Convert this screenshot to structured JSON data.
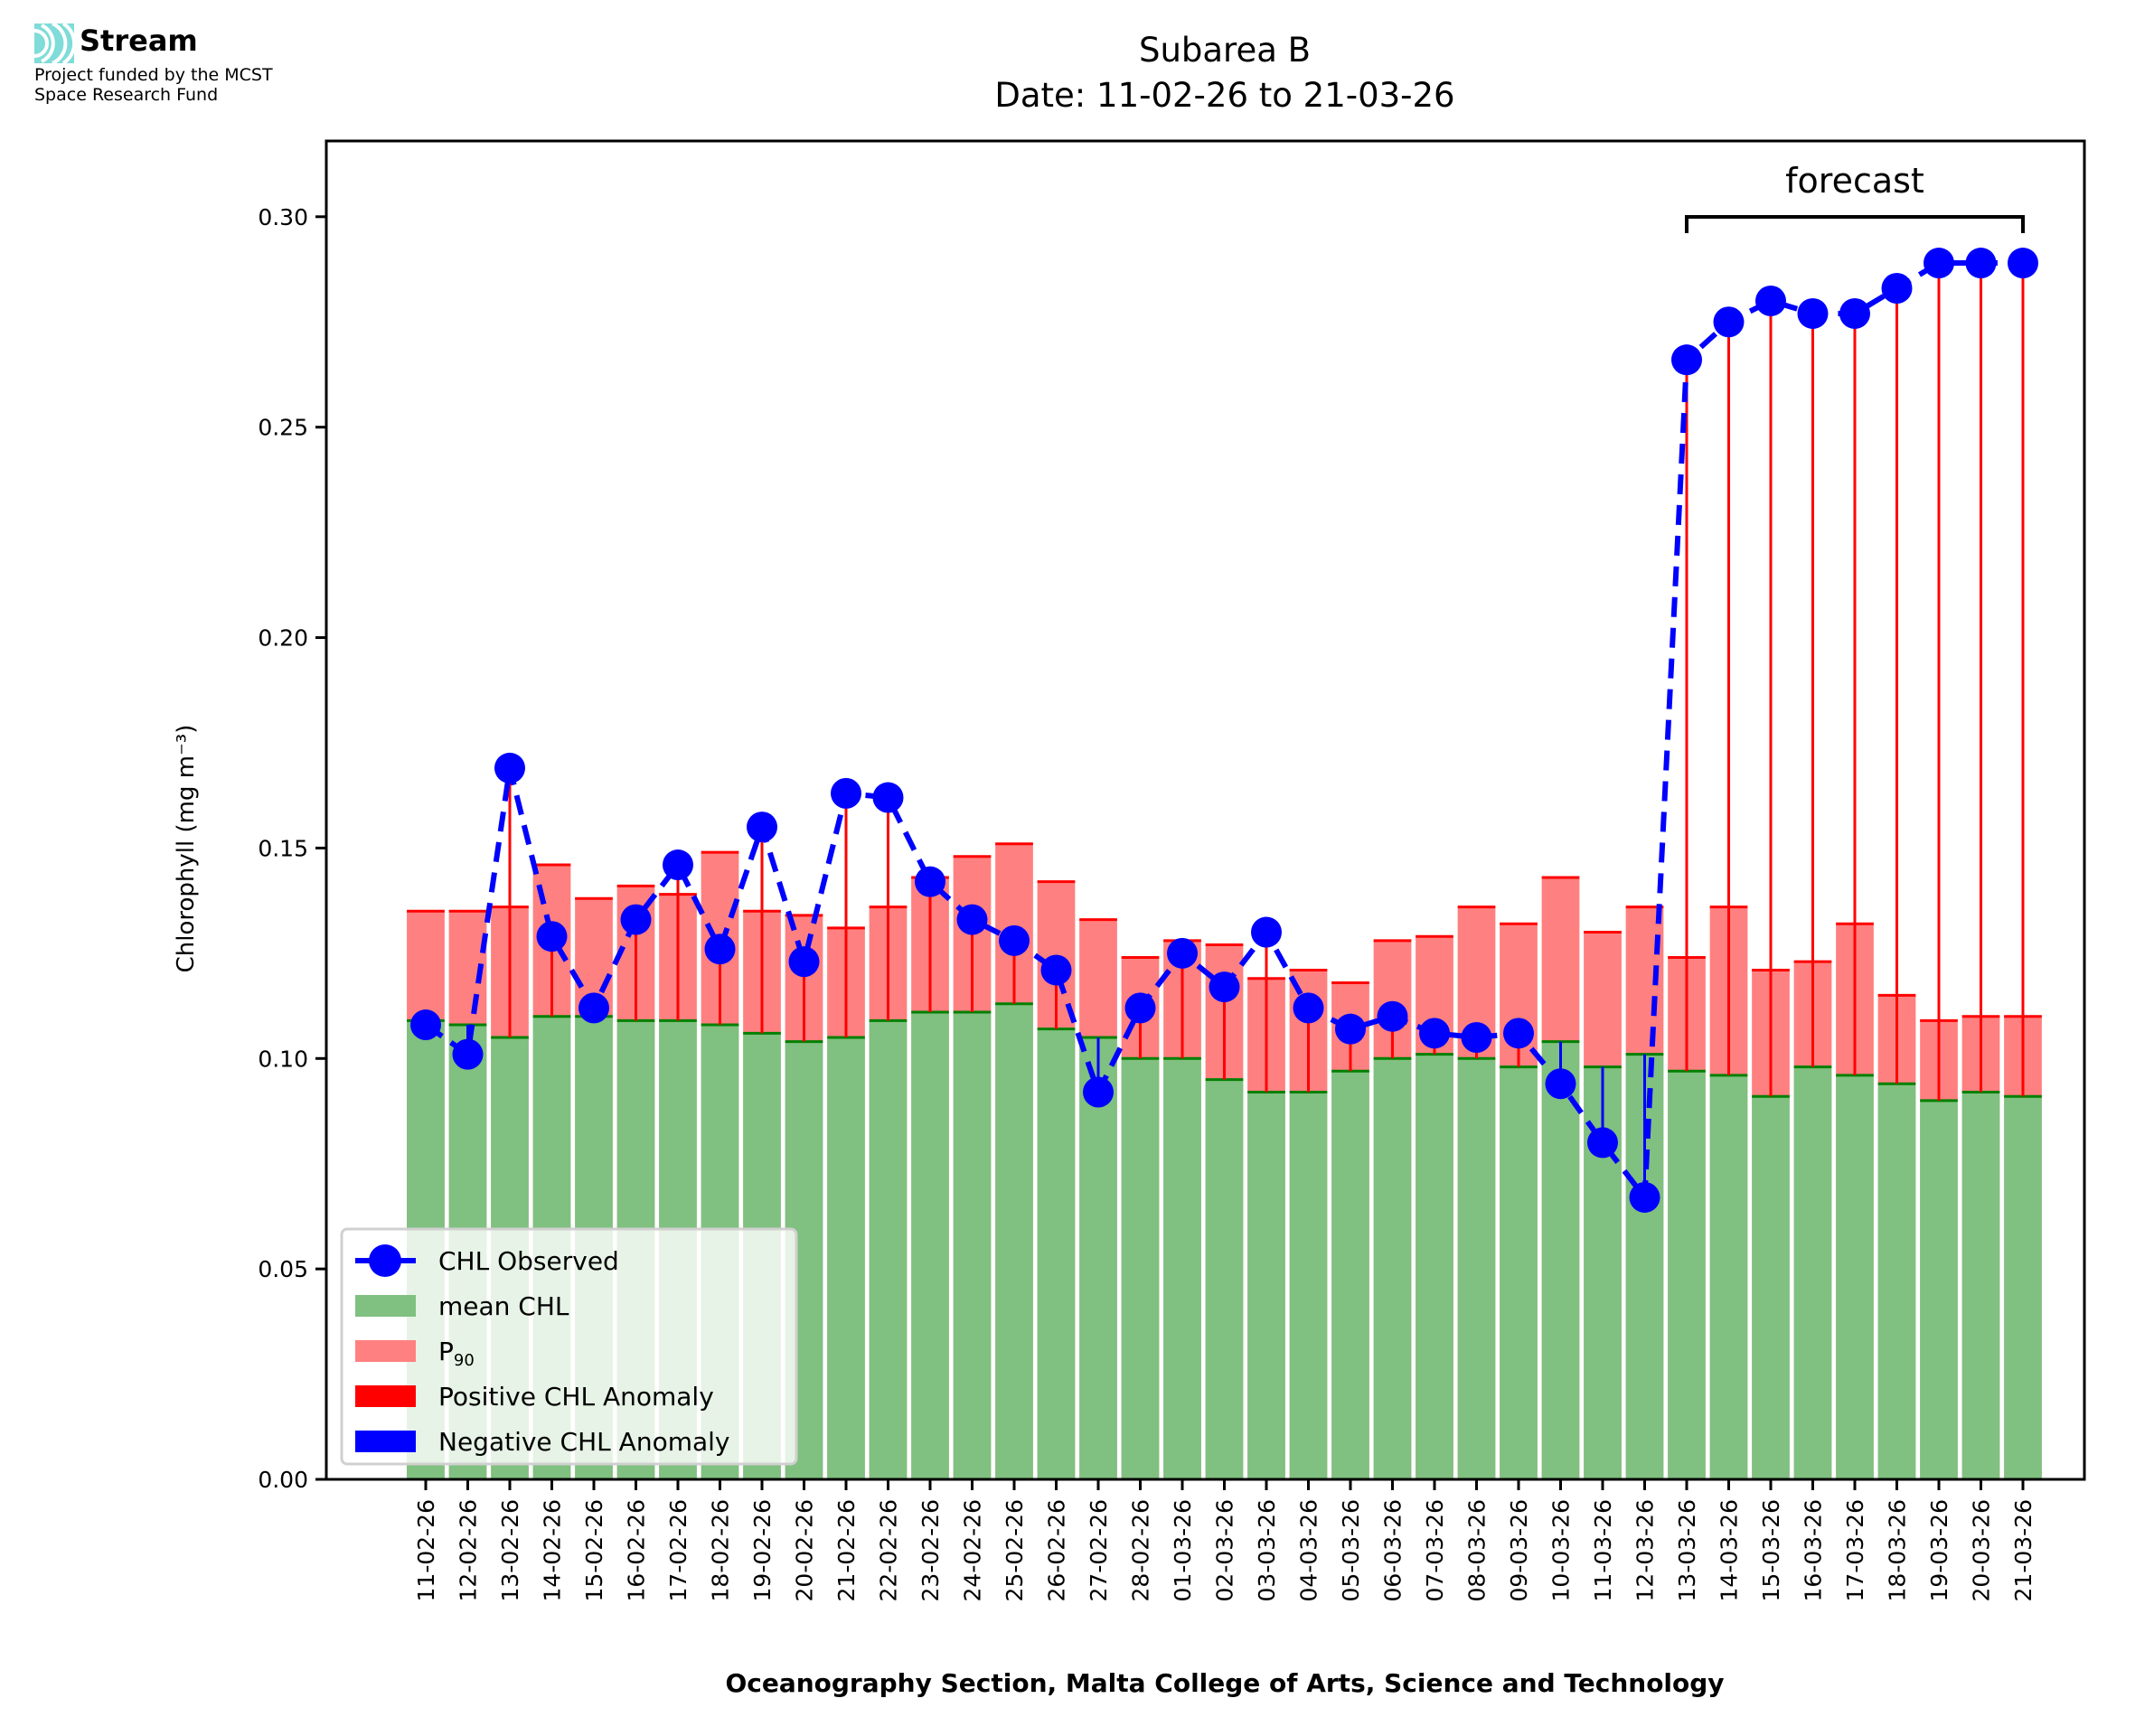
{
  "branding": {
    "name": "Stream",
    "subtitle_line1": "Project funded by the MCST",
    "subtitle_line2": "Space Research Fund",
    "logo_color": "#7fdcd8"
  },
  "chart_data": {
    "type": "bar",
    "title": "Subarea B",
    "subtitle": "Date: 11-02-26 to 21-03-26",
    "xlabel": "Oceanography Section, Malta College of Arts, Science and Technology",
    "ylabel": "Chlorophyll (mg m⁻³)",
    "ylim": [
      0,
      0.318
    ],
    "yticks": [
      "0.00",
      "0.05",
      "0.10",
      "0.15",
      "0.20",
      "0.25",
      "0.30"
    ],
    "ytick_values": [
      0,
      0.05,
      0.1,
      0.15,
      0.2,
      0.25,
      0.3
    ],
    "grid": false,
    "legend_position": "lower-left",
    "annotation": {
      "text": "forecast",
      "from": "13-03-26",
      "to": "21-03-26"
    },
    "categories": [
      "11-02-26",
      "12-02-26",
      "13-02-26",
      "14-02-26",
      "15-02-26",
      "16-02-26",
      "17-02-26",
      "18-02-26",
      "19-02-26",
      "20-02-26",
      "21-02-26",
      "22-02-26",
      "23-02-26",
      "24-02-26",
      "25-02-26",
      "26-02-26",
      "27-02-26",
      "28-02-26",
      "01-03-26",
      "02-03-26",
      "03-03-26",
      "04-03-26",
      "05-03-26",
      "06-03-26",
      "07-03-26",
      "08-03-26",
      "09-03-26",
      "10-03-26",
      "11-03-26",
      "12-03-26",
      "13-03-26",
      "14-03-26",
      "15-03-26",
      "16-03-26",
      "17-03-26",
      "18-03-26",
      "19-03-26",
      "20-03-26",
      "21-03-26"
    ],
    "series": [
      {
        "name": "mean CHL",
        "kind": "bar",
        "color": "#80c080",
        "values": [
          0.109,
          0.108,
          0.105,
          0.11,
          0.11,
          0.109,
          0.109,
          0.108,
          0.106,
          0.104,
          0.105,
          0.109,
          0.111,
          0.111,
          0.113,
          0.107,
          0.105,
          0.1,
          0.1,
          0.095,
          0.092,
          0.092,
          0.097,
          0.1,
          0.101,
          0.1,
          0.098,
          0.104,
          0.098,
          0.101,
          0.097,
          0.096,
          0.091,
          0.098,
          0.096,
          0.094,
          0.09,
          0.092,
          0.091
        ]
      },
      {
        "name": "P90",
        "kind": "bar",
        "color": "#ff8080",
        "values": [
          0.135,
          0.135,
          0.136,
          0.146,
          0.138,
          0.141,
          0.139,
          0.149,
          0.135,
          0.134,
          0.131,
          0.136,
          0.143,
          0.148,
          0.151,
          0.142,
          0.133,
          0.124,
          0.128,
          0.127,
          0.119,
          0.121,
          0.118,
          0.128,
          0.129,
          0.136,
          0.132,
          0.143,
          0.13,
          0.136,
          0.124,
          0.136,
          0.121,
          0.123,
          0.132,
          0.115,
          0.109,
          0.11,
          0.11
        ]
      },
      {
        "name": "CHL Observed",
        "kind": "line",
        "color": "#0000ff",
        "values": [
          0.108,
          0.101,
          0.169,
          0.129,
          0.112,
          0.133,
          0.146,
          0.126,
          0.155,
          0.123,
          0.163,
          0.162,
          0.142,
          0.133,
          0.128,
          0.121,
          0.092,
          0.112,
          0.125,
          0.117,
          0.13,
          0.112,
          0.107,
          0.11,
          0.106,
          0.105,
          0.106,
          0.094,
          0.08,
          0.067,
          0.266,
          0.275,
          0.28,
          0.277,
          0.277,
          0.283,
          0.289,
          0.289,
          0.289
        ]
      }
    ],
    "legend": [
      {
        "label": "CHL Observed",
        "kind": "line-marker",
        "color": "#0000ff"
      },
      {
        "label": "mean CHL",
        "kind": "patch",
        "color": "#80c080"
      },
      {
        "label": "P",
        "sub": "90",
        "kind": "patch",
        "color": "#ff8080"
      },
      {
        "label": "Positive CHL Anomaly",
        "kind": "patch",
        "color": "#ff0000"
      },
      {
        "label": "Negative CHL Anomaly",
        "kind": "patch",
        "color": "#0000ff"
      }
    ]
  }
}
